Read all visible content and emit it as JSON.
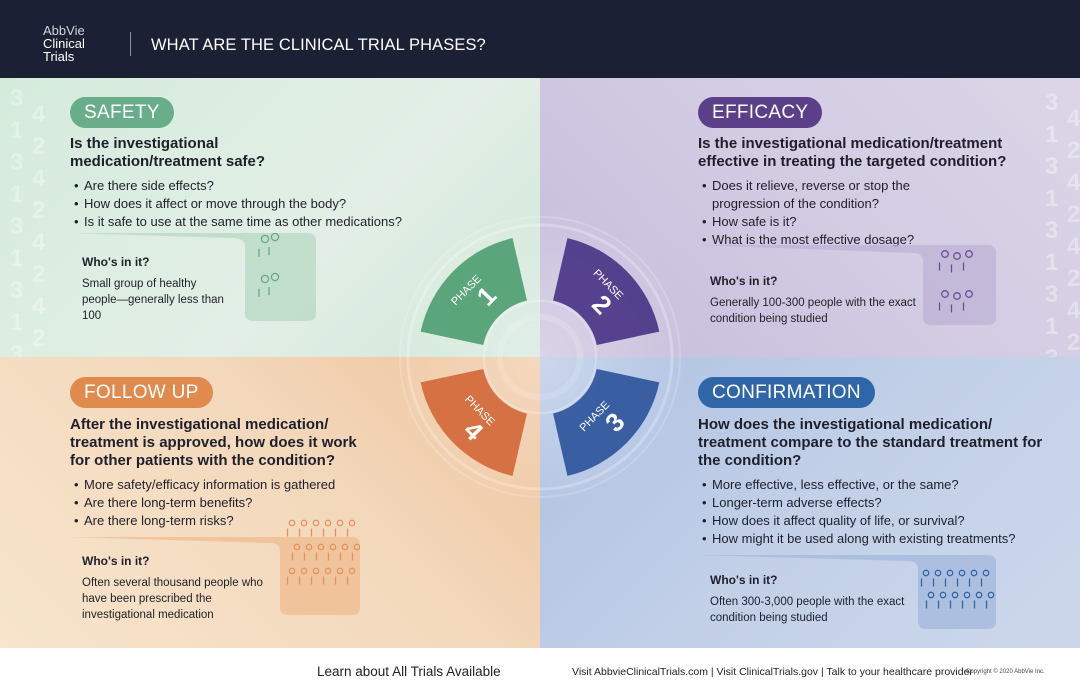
{
  "header": {
    "logo": [
      "AbbVie",
      "Clinical",
      "Trials"
    ],
    "title": "WHAT ARE THE CLINICAL TRIAL PHASES?"
  },
  "colors": {
    "header": "#1b2034",
    "safety": "#69ad8a",
    "efficacy": "#5b3f88",
    "follow_up": "#e08a4e",
    "confirmation": "#2f66a8"
  },
  "decor_digits": [
    "3",
    "4",
    "1",
    "2",
    "3",
    "4",
    "1",
    "2",
    "3",
    "4",
    "1",
    "2",
    "3",
    "4",
    "1",
    "2",
    "3"
  ],
  "phases": [
    {
      "word": "PHASE",
      "number": "1",
      "color": "#4f9e72"
    },
    {
      "word": "PHASE",
      "number": "2",
      "color": "#4a3585"
    },
    {
      "word": "PHASE",
      "number": "3",
      "color": "#2f559c"
    },
    {
      "word": "PHASE",
      "number": "4",
      "color": "#d2683a"
    }
  ],
  "safety": {
    "label": "SAFETY",
    "question": "Is the investigational medication/treatment safe?",
    "bullets": [
      "Are there side effects?",
      "How does it affect or move through the body?",
      "Is it safe to use at the same time as other medications?"
    ],
    "who_heading": "Who's in it?",
    "who_text": "Small group of healthy people—generally less than 100",
    "icon": "two-people-groups-icon"
  },
  "efficacy": {
    "label": "EFFICACY",
    "question": "Is the investigational medication/treatment effective in treating the targeted condition?",
    "bullets": [
      "Does it relieve, reverse or stop the progression of the condition?",
      "How safe is it?",
      "What is the most effective dosage?"
    ],
    "who_heading": "Who's in it?",
    "who_text": "Generally 100-300 people with the exact condition being studied",
    "icon": "three-people-groups-icon"
  },
  "follow_up": {
    "label": "FOLLOW UP",
    "question": "After the investigational medication/ treatment is approved, how does it work for other patients with the condition?",
    "bullets": [
      "More safety/efficacy information is gathered",
      "Are there long-term benefits?",
      "Are there long-term risks?"
    ],
    "who_heading": "Who's in it?",
    "who_text": "Often several thousand people who have been prescribed the investigational medication",
    "icon": "crowd-icon"
  },
  "confirmation": {
    "label": "CONFIRMATION",
    "question": "How does the investigational medication/ treatment compare to the standard treatment for the condition?",
    "bullets": [
      "More effective, less effective, or the same?",
      "Longer-term adverse effects?",
      "How does it affect quality of life, or survival?",
      "How might it be used along with existing treatments?"
    ],
    "who_heading": "Who's in it?",
    "who_text": "Often 300-3,000 people with the exact condition being studied",
    "icon": "large-group-icon"
  },
  "footer": {
    "learn": "Learn about All Trials Available",
    "links": "Visit AbbvieClinicalTrials.com | Visit ClinicalTrials.gov | Talk to your healthcare provider",
    "copyright": "Copyright © 2020 AbbVie Inc."
  }
}
